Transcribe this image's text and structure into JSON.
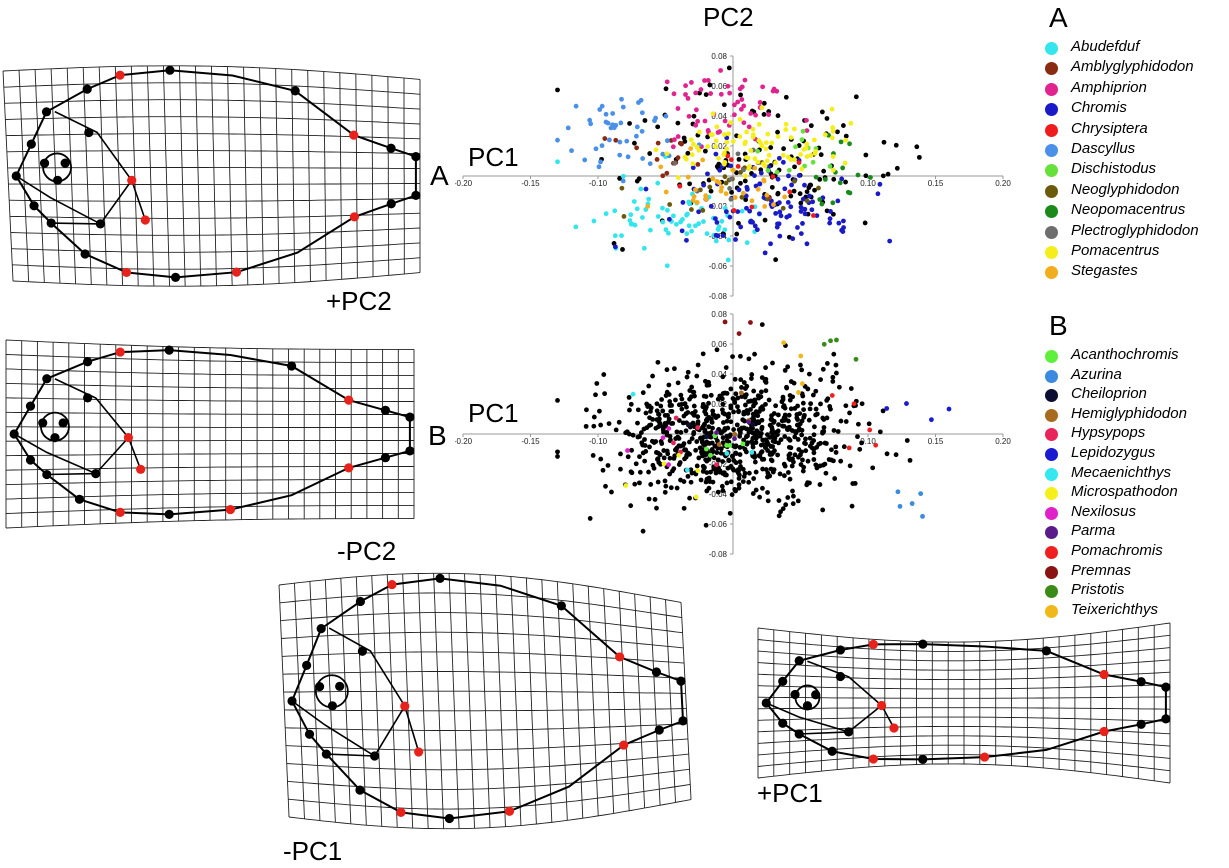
{
  "chart_data": [
    {
      "type": "scatter",
      "panel": "A",
      "xlabel": "PC1",
      "ylabel": "PC2",
      "xlim": [
        -0.2,
        0.2
      ],
      "ylim": [
        -0.08,
        0.08
      ],
      "x_ticks": [
        "-0.20",
        "-0.15",
        "-0.10",
        "0.10",
        "0.15",
        "0.20"
      ],
      "y_ticks": [
        "0.08",
        "0.06",
        "0.04",
        "0.02",
        "-0.02",
        "-0.04",
        "-0.06",
        "-0.08"
      ],
      "legend_title": "A",
      "series": [
        {
          "name": "Abudefduf",
          "color": "#33e6ee",
          "center": [
            -0.045,
            -0.028
          ],
          "spread": [
            0.032,
            0.013
          ],
          "count": 70
        },
        {
          "name": "Amblyglyphidodon",
          "color": "#8b2a12",
          "center": [
            -0.055,
            0.018
          ],
          "spread": [
            0.02,
            0.008
          ],
          "count": 14
        },
        {
          "name": "Amphiprion",
          "color": "#e0238f",
          "center": [
            -0.01,
            0.045
          ],
          "spread": [
            0.025,
            0.012
          ],
          "count": 55
        },
        {
          "name": "Chromis",
          "color": "#1a1ac9",
          "center": [
            0.03,
            -0.018
          ],
          "spread": [
            0.04,
            0.016
          ],
          "count": 110
        },
        {
          "name": "Chrysiptera",
          "color": "#ee1c1c",
          "center": [
            0.01,
            0.005
          ],
          "spread": [
            0.03,
            0.015
          ],
          "count": 12
        },
        {
          "name": "Dascyllus",
          "color": "#4a90e8",
          "center": [
            -0.08,
            0.03
          ],
          "spread": [
            0.025,
            0.015
          ],
          "count": 45
        },
        {
          "name": "Dischistodus",
          "color": "#66e03a",
          "center": [
            0.05,
            0.02
          ],
          "spread": [
            0.02,
            0.01
          ],
          "count": 12
        },
        {
          "name": "Neoglyphidodon",
          "color": "#6b5a0c",
          "center": [
            0.0,
            -0.01
          ],
          "spread": [
            0.03,
            0.012
          ],
          "count": 22
        },
        {
          "name": "Neopomacentrus",
          "color": "#1a8a1a",
          "center": [
            0.07,
            0.005
          ],
          "spread": [
            0.015,
            0.015
          ],
          "count": 16
        },
        {
          "name": "Plectroglyphidodon",
          "color": "#6e6e6e",
          "center": [
            0.0,
            0.0
          ],
          "spread": [
            0.02,
            0.01
          ],
          "count": 8
        },
        {
          "name": "Pomacentrus",
          "color": "#f5ee1a",
          "center": [
            0.025,
            0.02
          ],
          "spread": [
            0.035,
            0.012
          ],
          "count": 90
        },
        {
          "name": "Stegastes",
          "color": "#f2ad1e",
          "center": [
            0.0,
            -0.01
          ],
          "spread": [
            0.03,
            0.012
          ],
          "count": 30
        },
        {
          "name": "",
          "color": "#000000",
          "center": [
            0.02,
            0.005
          ],
          "spread": [
            0.05,
            0.022
          ],
          "count": 140
        }
      ]
    },
    {
      "type": "scatter",
      "panel": "B",
      "xlabel": "PC1",
      "ylabel": "",
      "xlim": [
        -0.2,
        0.2
      ],
      "ylim": [
        -0.08,
        0.08
      ],
      "x_ticks": [
        "-0.20",
        "-0.15",
        "-0.10",
        "0.10",
        "0.15",
        "0.20"
      ],
      "y_ticks": [
        "0.08",
        "0.06",
        "0.04",
        "0.02",
        "-0.02",
        "-0.04",
        "-0.06",
        "-0.08"
      ],
      "legend_title": "B",
      "series": [
        {
          "name": "",
          "color": "#000000",
          "center": [
            0.0,
            0.0
          ],
          "spread": [
            0.045,
            0.022
          ],
          "count": 820
        },
        {
          "name": "Acanthochromis",
          "color": "#5ef03a",
          "center": [
            -0.01,
            -0.005
          ],
          "spread": [
            0.02,
            0.01
          ],
          "count": 6
        },
        {
          "name": "Azurina",
          "color": "#3a8ae0",
          "center": [
            0.13,
            -0.04
          ],
          "spread": [
            0.01,
            0.01
          ],
          "count": 5
        },
        {
          "name": "Cheiloprion",
          "color": "#0d0d33",
          "center": [
            0.0,
            0.0
          ],
          "spread": [
            0.02,
            0.01
          ],
          "count": 4
        },
        {
          "name": "Hemiglyphidodon",
          "color": "#a86a1e",
          "center": [
            0.0,
            0.0
          ],
          "spread": [
            0.02,
            0.01
          ],
          "count": 4
        },
        {
          "name": "Hypsypops",
          "color": "#e8245a",
          "center": [
            -0.02,
            -0.01
          ],
          "spread": [
            0.02,
            0.01
          ],
          "count": 5
        },
        {
          "name": "Lepidozygus",
          "color": "#1a1ad0",
          "center": [
            0.13,
            0.02
          ],
          "spread": [
            0.02,
            0.004
          ],
          "count": 4
        },
        {
          "name": "Mecaenichthys",
          "color": "#33e8ee",
          "center": [
            -0.02,
            0.0
          ],
          "spread": [
            0.02,
            0.01
          ],
          "count": 4
        },
        {
          "name": "Microspathodon",
          "color": "#f5f01a",
          "center": [
            -0.05,
            -0.02
          ],
          "spread": [
            0.02,
            0.01
          ],
          "count": 5
        },
        {
          "name": "Nexilosus",
          "color": "#e020c8",
          "center": [
            -0.04,
            -0.01
          ],
          "spread": [
            0.02,
            0.01
          ],
          "count": 4
        },
        {
          "name": "Parma",
          "color": "#5a1a8a",
          "center": [
            0.0,
            0.0
          ],
          "spread": [
            0.02,
            0.01
          ],
          "count": 3
        },
        {
          "name": "Pomachromis",
          "color": "#f02020",
          "center": [
            0.09,
            0.01
          ],
          "spread": [
            0.02,
            0.01
          ],
          "count": 5
        },
        {
          "name": "Premnas",
          "color": "#8a1212",
          "center": [
            0.0,
            0.07
          ],
          "spread": [
            0.01,
            0.003
          ],
          "count": 3
        },
        {
          "name": "Pristotis",
          "color": "#3a8a1a",
          "center": [
            0.07,
            0.06
          ],
          "spread": [
            0.01,
            0.005
          ],
          "count": 4
        },
        {
          "name": "Teixerichthys",
          "color": "#f0b81a",
          "center": [
            0.05,
            0.04
          ],
          "spread": [
            0.01,
            0.01
          ],
          "count": 4
        }
      ]
    }
  ],
  "labels": {
    "pc2_title": "PC2",
    "pc1_a": "PC1",
    "pc1_b": "PC1",
    "panel_a": "A",
    "panel_b": "B",
    "plus_pc2": "+PC2",
    "minus_pc2": "-PC2",
    "minus_pc1": "-PC1",
    "plus_pc1": "+PC1",
    "legend_a_title": "A",
    "legend_b_title": "B"
  }
}
